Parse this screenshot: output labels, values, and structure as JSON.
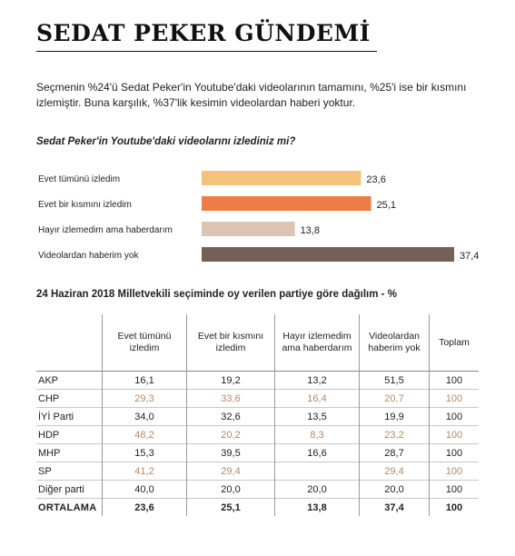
{
  "header": {
    "title": "SEDAT PEKER GÜNDEMİ",
    "summary": "Seçmenin %24'ü Sedat Peker'in Youtube'daki videolarının tamamını, %25'i ise bir kısmını izlemiştir. Buna karşılık, %37'lik kesimin videolardan haberi yoktur."
  },
  "chart_data": {
    "type": "bar",
    "orientation": "horizontal",
    "title": "Sedat Peker'in Youtube'daki videolarını izlediniz mi?",
    "categories": [
      "Evet tümünü izledim",
      "Evet bir kısmını izledim",
      "Hayır izlemedim ama haberdarım",
      "Videolardan haberim yok"
    ],
    "values": [
      23.6,
      25.1,
      13.8,
      37.4
    ],
    "value_labels": [
      "23,6",
      "25,1",
      "13,8",
      "37,4"
    ],
    "colors": [
      "#f5c27a",
      "#ee7c45",
      "#dcc4b4",
      "#756057"
    ],
    "xlim": [
      0,
      37.4
    ],
    "grid": false
  },
  "table": {
    "title": "24 Haziran 2018 Milletvekili seçiminde oy verilen partiye göre dağılım - %",
    "headers": [
      "Evet tümünü izledim",
      "Evet bir kısmını izledim",
      "Hayır izlemedim ama haberdarım",
      "Videolardan haberim yok",
      "Toplam"
    ],
    "rows": [
      {
        "party": "AKP",
        "values": [
          "16,1",
          "19,2",
          "13,2",
          "51,5",
          "100"
        ]
      },
      {
        "party": "CHP",
        "values": [
          "29,3",
          "33,6",
          "16,4",
          "20,7",
          "100"
        ]
      },
      {
        "party": "İYİ Parti",
        "values": [
          "34,0",
          "32,6",
          "13,5",
          "19,9",
          "100"
        ]
      },
      {
        "party": "HDP",
        "values": [
          "48,2",
          "20,2",
          "8,3",
          "23,2",
          "100"
        ]
      },
      {
        "party": "MHP",
        "values": [
          "15,3",
          "39,5",
          "16,6",
          "28,7",
          "100"
        ]
      },
      {
        "party": "SP",
        "values": [
          "41,2",
          "29,4",
          "",
          "29,4",
          "100"
        ]
      },
      {
        "party": "Diğer parti",
        "values": [
          "40,0",
          "20,0",
          "20,0",
          "20,0",
          "100"
        ]
      },
      {
        "party": "ORTALAMA",
        "values": [
          "23,6",
          "25,1",
          "13,8",
          "37,4",
          "100"
        ]
      }
    ]
  }
}
